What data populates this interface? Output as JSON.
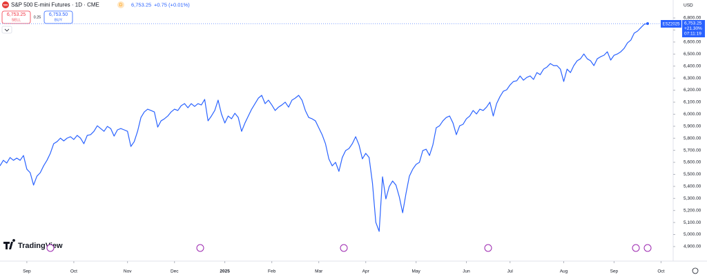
{
  "header": {
    "symbol_badge": "500",
    "title": "S&P 500 E-mini Futures · 1D · CME",
    "status": "D",
    "price": "6,753.25",
    "change": "+0.75 (+0.01%)",
    "sell_price": "6,753.25",
    "sell_label": "SELL",
    "spread": "0.25",
    "buy_price": "6,753.50",
    "buy_label": "BUY",
    "currency": "USD",
    "tag_symbol": "ESZ2025",
    "tag_price": "6,753.25",
    "tag_change": "+21.30%",
    "tag_timer": "07:11:19",
    "logo": "TradingView"
  },
  "chart_data": {
    "type": "line",
    "color": "#2962ff",
    "series": [
      {
        "name": "ESZ2025",
        "color": "#2962ff",
        "values": [
          5571,
          5617,
          5594,
          5640,
          5617,
          5635,
          5617,
          5657,
          5543,
          5514,
          5411,
          5485,
          5514,
          5571,
          5617,
          5675,
          5755,
          5772,
          5801,
          5778,
          5801,
          5813,
          5790,
          5824,
          5801,
          5755,
          5824,
          5830,
          5858,
          5904,
          5881,
          5858,
          5899,
          5881,
          5818,
          5870,
          5881,
          5870,
          5858,
          5732,
          5772,
          5858,
          5973,
          6019,
          6042,
          6031,
          6019,
          5893,
          5945,
          5962,
          5985,
          6019,
          6042,
          6031,
          6071,
          6088,
          6054,
          6088,
          6065,
          6088,
          6077,
          6123,
          5945,
          5985,
          6031,
          6117,
          6002,
          5927,
          5985,
          5962,
          6008,
          5973,
          5858,
          5927,
          5985,
          6042,
          6088,
          6134,
          6157,
          6088,
          6117,
          6077,
          6031,
          6059,
          6077,
          6100,
          6059,
          6117,
          6134,
          6157,
          6117,
          6031,
          5973,
          5962,
          5945,
          5887,
          5830,
          5755,
          5629,
          5571,
          5600,
          5525,
          5640,
          5698,
          5715,
          5755,
          5813,
          5744,
          5629,
          5675,
          5640,
          5428,
          5101,
          5026,
          5480,
          5296,
          5399,
          5445,
          5411,
          5313,
          5181,
          5342,
          5485,
          5543,
          5583,
          5600,
          5698,
          5709,
          5657,
          5744,
          5887,
          5904,
          5945,
          5973,
          5985,
          5927,
          5830,
          5904,
          5916,
          5962,
          5985,
          6031,
          6002,
          6042,
          6031,
          6059,
          6100,
          5985,
          6088,
          6146,
          6191,
          6203,
          6243,
          6272,
          6278,
          6318,
          6283,
          6306,
          6318,
          6289,
          6346,
          6329,
          6375,
          6392,
          6421,
          6404,
          6404,
          6375,
          6272,
          6375,
          6346,
          6404,
          6444,
          6461,
          6501,
          6461,
          6444,
          6404,
          6461,
          6478,
          6490,
          6519,
          6450,
          6490,
          6501,
          6519,
          6547,
          6593,
          6616,
          6674,
          6691,
          6720,
          6748,
          6753.25
        ]
      }
    ],
    "xlim": [
      0,
      200
    ],
    "xticks": [
      {
        "value": 8,
        "label": "Sep"
      },
      {
        "value": 22,
        "label": "Oct"
      },
      {
        "value": 38,
        "label": "Nov"
      },
      {
        "value": 52,
        "label": "Dec"
      },
      {
        "value": 67,
        "label": "2025"
      },
      {
        "value": 81,
        "label": "Feb"
      },
      {
        "value": 95,
        "label": "Mar"
      },
      {
        "value": 109,
        "label": "Apr"
      },
      {
        "value": 124,
        "label": "May"
      },
      {
        "value": 139,
        "label": "Jun"
      },
      {
        "value": 152,
        "label": "Jul"
      },
      {
        "value": 168,
        "label": "Aug"
      },
      {
        "value": 183,
        "label": "Sep"
      },
      {
        "value": 197,
        "label": "Oct"
      }
    ],
    "ylim": [
      4825,
      6892
    ],
    "yticks": [
      {
        "value": 4900,
        "label": "4,900.00"
      },
      {
        "value": 5000,
        "label": "5,000.00"
      },
      {
        "value": 5100,
        "label": "5,100.00"
      },
      {
        "value": 5200,
        "label": "5,200.00"
      },
      {
        "value": 5300,
        "label": "5,300.00"
      },
      {
        "value": 5400,
        "label": "5,400.00"
      },
      {
        "value": 5500,
        "label": "5,500.00"
      },
      {
        "value": 5600,
        "label": "5,600.00"
      },
      {
        "value": 5700,
        "label": "5,700.00"
      },
      {
        "value": 5800,
        "label": "5,800.00"
      },
      {
        "value": 5900,
        "label": "5,900.00"
      },
      {
        "value": 6000,
        "label": "6,000.00"
      },
      {
        "value": 6100,
        "label": "6,100.00"
      },
      {
        "value": 6200,
        "label": "6,200.00"
      },
      {
        "value": 6300,
        "label": "6,300.00"
      },
      {
        "value": 6400,
        "label": "6,400.00"
      },
      {
        "value": 6500,
        "label": "6,500.00"
      },
      {
        "value": 6600,
        "label": "6,600.00"
      },
      {
        "value": 6700,
        "label": "6,700.00"
      },
      {
        "value": 6800,
        "label": "6,800.00"
      }
    ],
    "grid": false
  }
}
